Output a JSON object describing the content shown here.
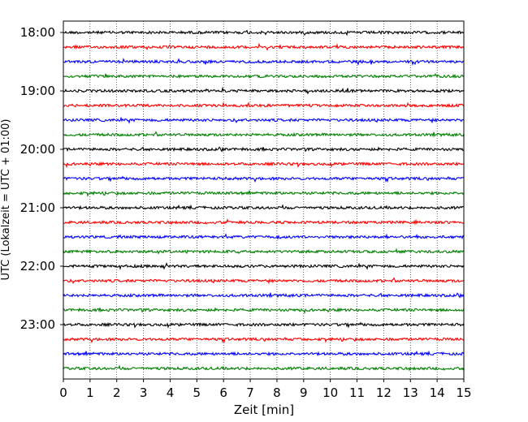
{
  "chart_data": {
    "type": "line",
    "title": "",
    "xlabel": "Zeit  [min]",
    "ylabel": "UTC (Lokalzeit = UTC + 01:00)",
    "xlim": [
      0,
      15
    ],
    "x_ticks": [
      "0",
      "1",
      "2",
      "3",
      "4",
      "5",
      "6",
      "7",
      "8",
      "9",
      "10",
      "11",
      "12",
      "13",
      "14",
      "15"
    ],
    "y_ticks": [
      "18:00",
      "19:00",
      "20:00",
      "21:00",
      "22:00",
      "23:00"
    ],
    "grid": "vertical dotted",
    "trace_interval_min": 15,
    "trace_color_cycle": [
      "#000000",
      "#ff0000",
      "#0000ff",
      "#008000"
    ],
    "series": [
      {
        "start": "18:00",
        "color": "#000000"
      },
      {
        "start": "18:15",
        "color": "#ff0000"
      },
      {
        "start": "18:30",
        "color": "#0000ff"
      },
      {
        "start": "18:45",
        "color": "#008000"
      },
      {
        "start": "19:00",
        "color": "#000000"
      },
      {
        "start": "19:15",
        "color": "#ff0000"
      },
      {
        "start": "19:30",
        "color": "#0000ff"
      },
      {
        "start": "19:45",
        "color": "#008000"
      },
      {
        "start": "20:00",
        "color": "#000000"
      },
      {
        "start": "20:15",
        "color": "#ff0000"
      },
      {
        "start": "20:30",
        "color": "#0000ff"
      },
      {
        "start": "20:45",
        "color": "#008000"
      },
      {
        "start": "21:00",
        "color": "#000000"
      },
      {
        "start": "21:15",
        "color": "#ff0000"
      },
      {
        "start": "21:30",
        "color": "#0000ff"
      },
      {
        "start": "21:45",
        "color": "#008000"
      },
      {
        "start": "22:00",
        "color": "#000000"
      },
      {
        "start": "22:15",
        "color": "#ff0000"
      },
      {
        "start": "22:30",
        "color": "#0000ff"
      },
      {
        "start": "22:45",
        "color": "#008000"
      },
      {
        "start": "23:00",
        "color": "#000000"
      },
      {
        "start": "23:15",
        "color": "#ff0000"
      },
      {
        "start": "23:30",
        "color": "#0000ff"
      },
      {
        "start": "23:45",
        "color": "#008000"
      }
    ]
  }
}
